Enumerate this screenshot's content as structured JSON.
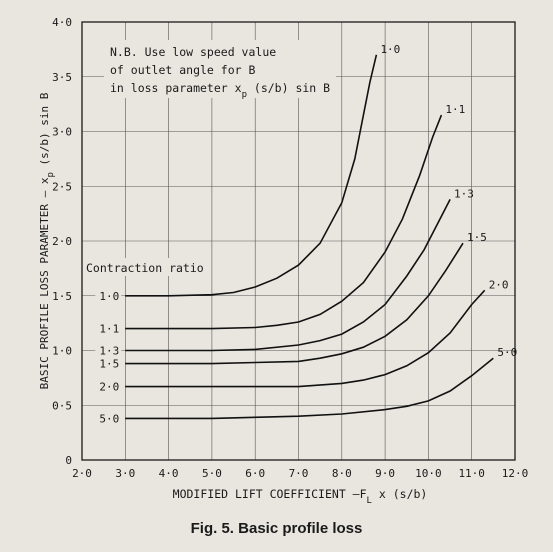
{
  "figure": {
    "caption": "Fig. 5.  Basic profile loss"
  },
  "chart_data": {
    "type": "line",
    "xlabel": "MODIFIED LIFT COEFFICIENT —F",
    "xlabel_sub": "L",
    "xlabel_tail": "x (s/b)",
    "ylabel": "BASIC PROFILE LOSS PARAMETER — x",
    "ylabel_sub": "p",
    "ylabel_tail": "(s/b) sin B",
    "xlim": [
      2.0,
      12.0
    ],
    "ylim": [
      0,
      4.0
    ],
    "x_ticks": [
      "2·0",
      "3·0",
      "4·0",
      "5·0",
      "6·0",
      "7·0",
      "8·0",
      "9·0",
      "10·0",
      "11·0",
      "12·0"
    ],
    "y_ticks": [
      "0",
      "0·5",
      "1·0",
      "1·5",
      "2·0",
      "2·5",
      "3·0",
      "3·5",
      "4·0"
    ],
    "grid": true,
    "note": [
      "N.B. Use low speed value",
      "of outlet angle for B",
      "in loss parameter x",
      "p",
      "(s/b) sin B"
    ],
    "legend_title": "Contraction ratio",
    "series": [
      {
        "name": "1·0",
        "x": [
          3.0,
          4.0,
          5.0,
          5.5,
          6.0,
          6.5,
          7.0,
          7.5,
          8.0,
          8.3,
          8.5,
          8.65,
          8.8
        ],
        "y": [
          1.5,
          1.5,
          1.51,
          1.53,
          1.58,
          1.66,
          1.78,
          1.98,
          2.35,
          2.75,
          3.15,
          3.45,
          3.7
        ]
      },
      {
        "name": "1·1",
        "x": [
          3.0,
          4.0,
          5.0,
          6.0,
          6.5,
          7.0,
          7.5,
          8.0,
          8.5,
          9.0,
          9.4,
          9.8,
          10.1,
          10.3
        ],
        "y": [
          1.2,
          1.2,
          1.2,
          1.21,
          1.23,
          1.26,
          1.33,
          1.45,
          1.62,
          1.9,
          2.2,
          2.6,
          2.95,
          3.15
        ]
      },
      {
        "name": "1·3",
        "x": [
          3.0,
          4.0,
          5.0,
          6.0,
          7.0,
          7.5,
          8.0,
          8.5,
          9.0,
          9.5,
          9.9,
          10.2,
          10.5
        ],
        "y": [
          1.0,
          1.0,
          1.0,
          1.01,
          1.05,
          1.09,
          1.15,
          1.26,
          1.42,
          1.68,
          1.92,
          2.15,
          2.38
        ]
      },
      {
        "name": "1·5",
        "x": [
          3.0,
          4.0,
          5.0,
          6.0,
          7.0,
          7.5,
          8.0,
          8.5,
          9.0,
          9.5,
          10.0,
          10.4,
          10.8
        ],
        "y": [
          0.88,
          0.88,
          0.88,
          0.89,
          0.9,
          0.93,
          0.97,
          1.03,
          1.13,
          1.28,
          1.5,
          1.73,
          1.98
        ]
      },
      {
        "name": "2·0",
        "x": [
          3.0,
          4.0,
          5.0,
          6.0,
          7.0,
          8.0,
          8.5,
          9.0,
          9.5,
          10.0,
          10.5,
          11.0,
          11.3
        ],
        "y": [
          0.67,
          0.67,
          0.67,
          0.67,
          0.67,
          0.7,
          0.73,
          0.78,
          0.86,
          0.98,
          1.16,
          1.42,
          1.55
        ]
      },
      {
        "name": "5·0",
        "x": [
          3.0,
          4.0,
          5.0,
          6.0,
          7.0,
          8.0,
          9.0,
          9.5,
          10.0,
          10.5,
          11.0,
          11.5
        ],
        "y": [
          0.38,
          0.38,
          0.38,
          0.39,
          0.4,
          0.42,
          0.46,
          0.49,
          0.54,
          0.63,
          0.77,
          0.93
        ]
      }
    ],
    "end_labels": [
      "1·0",
      "1·1",
      "1·3",
      "1·5",
      "2·0",
      "5·0"
    ]
  }
}
